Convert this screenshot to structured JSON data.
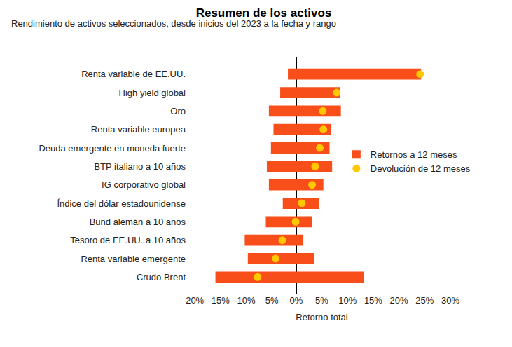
{
  "chart_data": {
    "type": "bar",
    "orientation": "horizontal",
    "title": "Resumen de los activos",
    "subtitle": "Rendimiento de activos seleccionados, desde inicios del 2023 a la fecha y rango",
    "x_label": "Retorno total",
    "categories": [
      "Renta variable de EE.UU.",
      "High yield global",
      "Oro",
      "Renta variable europea",
      "Deuda emergente en moneda fuerte",
      "BTP italiano a 10 años",
      "IG corporativo global",
      "Índice del dólar estadounidense",
      "Bund alemán a 10 años",
      "Tesoro de EE.UU. a 10 años",
      "Renta variable emergente",
      "Crudo Brent"
    ],
    "series": [
      {
        "name": "Retornos a 12 meses",
        "type": "bar",
        "color": "#f84e1a",
        "values": [
          [
            -1.6,
            24.3
          ],
          [
            -3.1,
            8.6
          ],
          [
            -5.3,
            8.7
          ],
          [
            -4.4,
            6.8
          ],
          [
            -4.9,
            6.5
          ],
          [
            -5.7,
            7.0
          ],
          [
            -5.3,
            5.3
          ],
          [
            -2.6,
            4.4
          ],
          [
            -5.9,
            3.1
          ],
          [
            -10.0,
            1.4
          ],
          [
            -9.4,
            3.5
          ],
          [
            -15.7,
            13.2
          ]
        ]
      },
      {
        "name": "Devolución de 12 meses",
        "type": "scatter",
        "marker": "circle",
        "color": "#ffc800",
        "values": [
          24.1,
          7.9,
          5.2,
          5.3,
          4.6,
          3.7,
          3.1,
          1.1,
          -0.1,
          -2.7,
          -4.0,
          -7.5
        ]
      }
    ],
    "xlim": [
      -20,
      30
    ],
    "xticks": [
      {
        "value": -20,
        "label": "-20%"
      },
      {
        "value": -15,
        "label": "-15%"
      },
      {
        "value": -10,
        "label": "-10%"
      },
      {
        "value": -5,
        "label": "-5%"
      },
      {
        "value": 0,
        "label": "0%"
      },
      {
        "value": 5,
        "label": "5%"
      },
      {
        "value": 10,
        "label": "10%"
      },
      {
        "value": 15,
        "label": "15%"
      },
      {
        "value": 20,
        "label": "20%"
      },
      {
        "value": 25,
        "label": "25%"
      },
      {
        "value": 30,
        "label": "30%"
      }
    ],
    "grid": false,
    "legend": "right"
  }
}
